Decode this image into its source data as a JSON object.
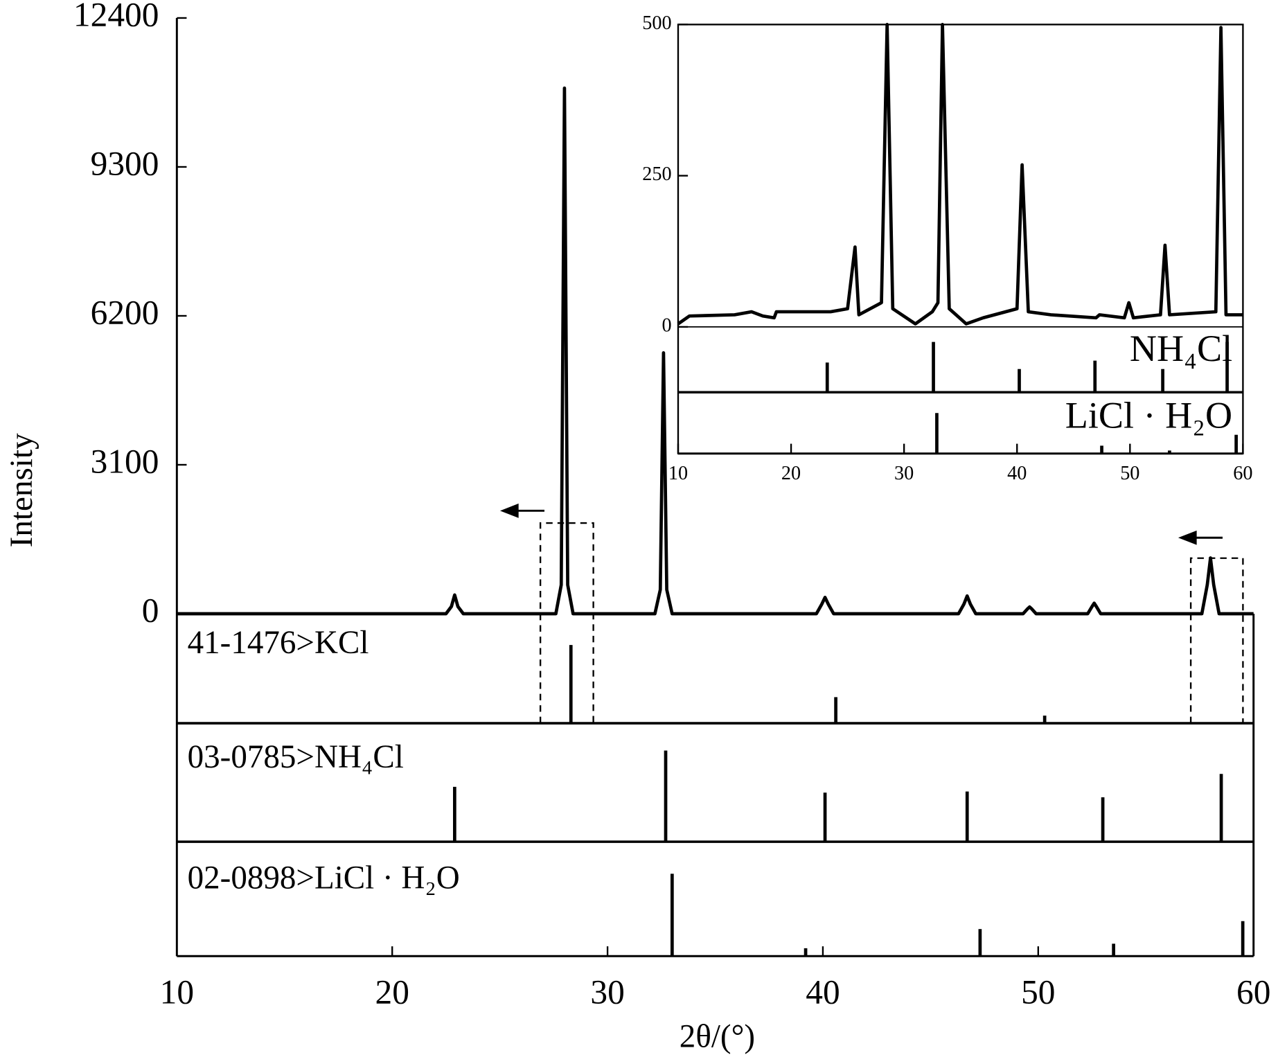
{
  "chart_data": [
    {
      "type": "line",
      "x_label": "2θ/(°)",
      "y_label": "Intensity",
      "xlim": [
        10,
        60
      ],
      "xticks": [
        10,
        20,
        30,
        40,
        50,
        60
      ],
      "ylim": [
        0,
        12400
      ],
      "yticks": [
        0,
        3100,
        6200,
        9300,
        12400
      ],
      "series": [
        {
          "color": "#000000",
          "x": [
            10,
            22.5,
            22.75,
            22.9,
            23.05,
            23.3,
            27.6,
            27.85,
            28.0,
            28.15,
            28.4,
            32.2,
            32.45,
            32.6,
            32.75,
            33.0,
            39.7,
            39.95,
            40.1,
            40.25,
            40.5,
            46.3,
            46.55,
            46.7,
            46.85,
            47.1,
            49.3,
            49.5,
            49.6,
            49.7,
            49.9,
            52.3,
            52.5,
            52.6,
            52.7,
            52.9,
            57.6,
            57.85,
            58.0,
            58.15,
            58.4,
            60
          ],
          "values": [
            0,
            0,
            150,
            390,
            150,
            0,
            0,
            600,
            10940,
            600,
            0,
            0,
            500,
            5430,
            500,
            0,
            0,
            200,
            340,
            200,
            0,
            0,
            200,
            370,
            200,
            0,
            0,
            100,
            140,
            100,
            0,
            0,
            150,
            220,
            150,
            0,
            0,
            600,
            1160,
            600,
            0,
            0
          ]
        }
      ],
      "references": [
        {
          "label": "41-1476>KCl",
          "positions": [
            28.3,
            40.6,
            50.3
          ],
          "intensities": [
            72,
            24,
            7
          ]
        },
        {
          "label": "03-0785>NH₄Cl",
          "positions": [
            22.9,
            32.7,
            40.1,
            46.7,
            53.0,
            58.5
          ],
          "intensities": [
            47,
            78,
            42,
            43,
            38,
            58
          ]
        },
        {
          "label": "02-0898>LiCl · H₂O",
          "positions": [
            33.0,
            39.2,
            47.3,
            53.5,
            59.5
          ],
          "intensities": [
            73,
            7,
            24,
            11,
            31
          ]
        }
      ]
    },
    {
      "type": "line",
      "xlim": [
        10,
        60
      ],
      "xticks": [
        10,
        20,
        30,
        40,
        50,
        60
      ],
      "ylim": [
        0,
        500
      ],
      "yticks": [
        0,
        250,
        500
      ],
      "series": [
        {
          "color": "#000000",
          "x": [
            10,
            11,
            15,
            16.5,
            17.5,
            18.5,
            18.7,
            23.5,
            25,
            25.66,
            26,
            28,
            28.5,
            29,
            31,
            32.5,
            33,
            33.4,
            34,
            35.5,
            37,
            40,
            40.45,
            41,
            43,
            47,
            47.3,
            49.5,
            49.9,
            50.3,
            52.7,
            53.1,
            53.5,
            57.6,
            58.05,
            58.5,
            60
          ],
          "values": [
            5,
            18,
            20,
            25,
            18,
            15,
            25,
            25,
            30,
            132,
            20,
            40,
            500,
            30,
            5,
            25,
            40,
            500,
            30,
            5,
            15,
            30,
            268,
            25,
            20,
            15,
            20,
            15,
            40,
            15,
            20,
            135,
            20,
            25,
            495,
            20,
            20
          ]
        }
      ],
      "references": [
        {
          "label": "NH₄Cl",
          "positions": [
            23.2,
            32.6,
            40.2,
            46.9,
            52.9,
            58.6
          ],
          "intensities": [
            46,
            78,
            36,
            49,
            36,
            78
          ]
        },
        {
          "label": "LiCl · H₂O",
          "positions": [
            32.9,
            47.5,
            53.5,
            59.4
          ],
          "intensities": [
            67,
            13,
            5,
            31
          ]
        }
      ]
    }
  ]
}
